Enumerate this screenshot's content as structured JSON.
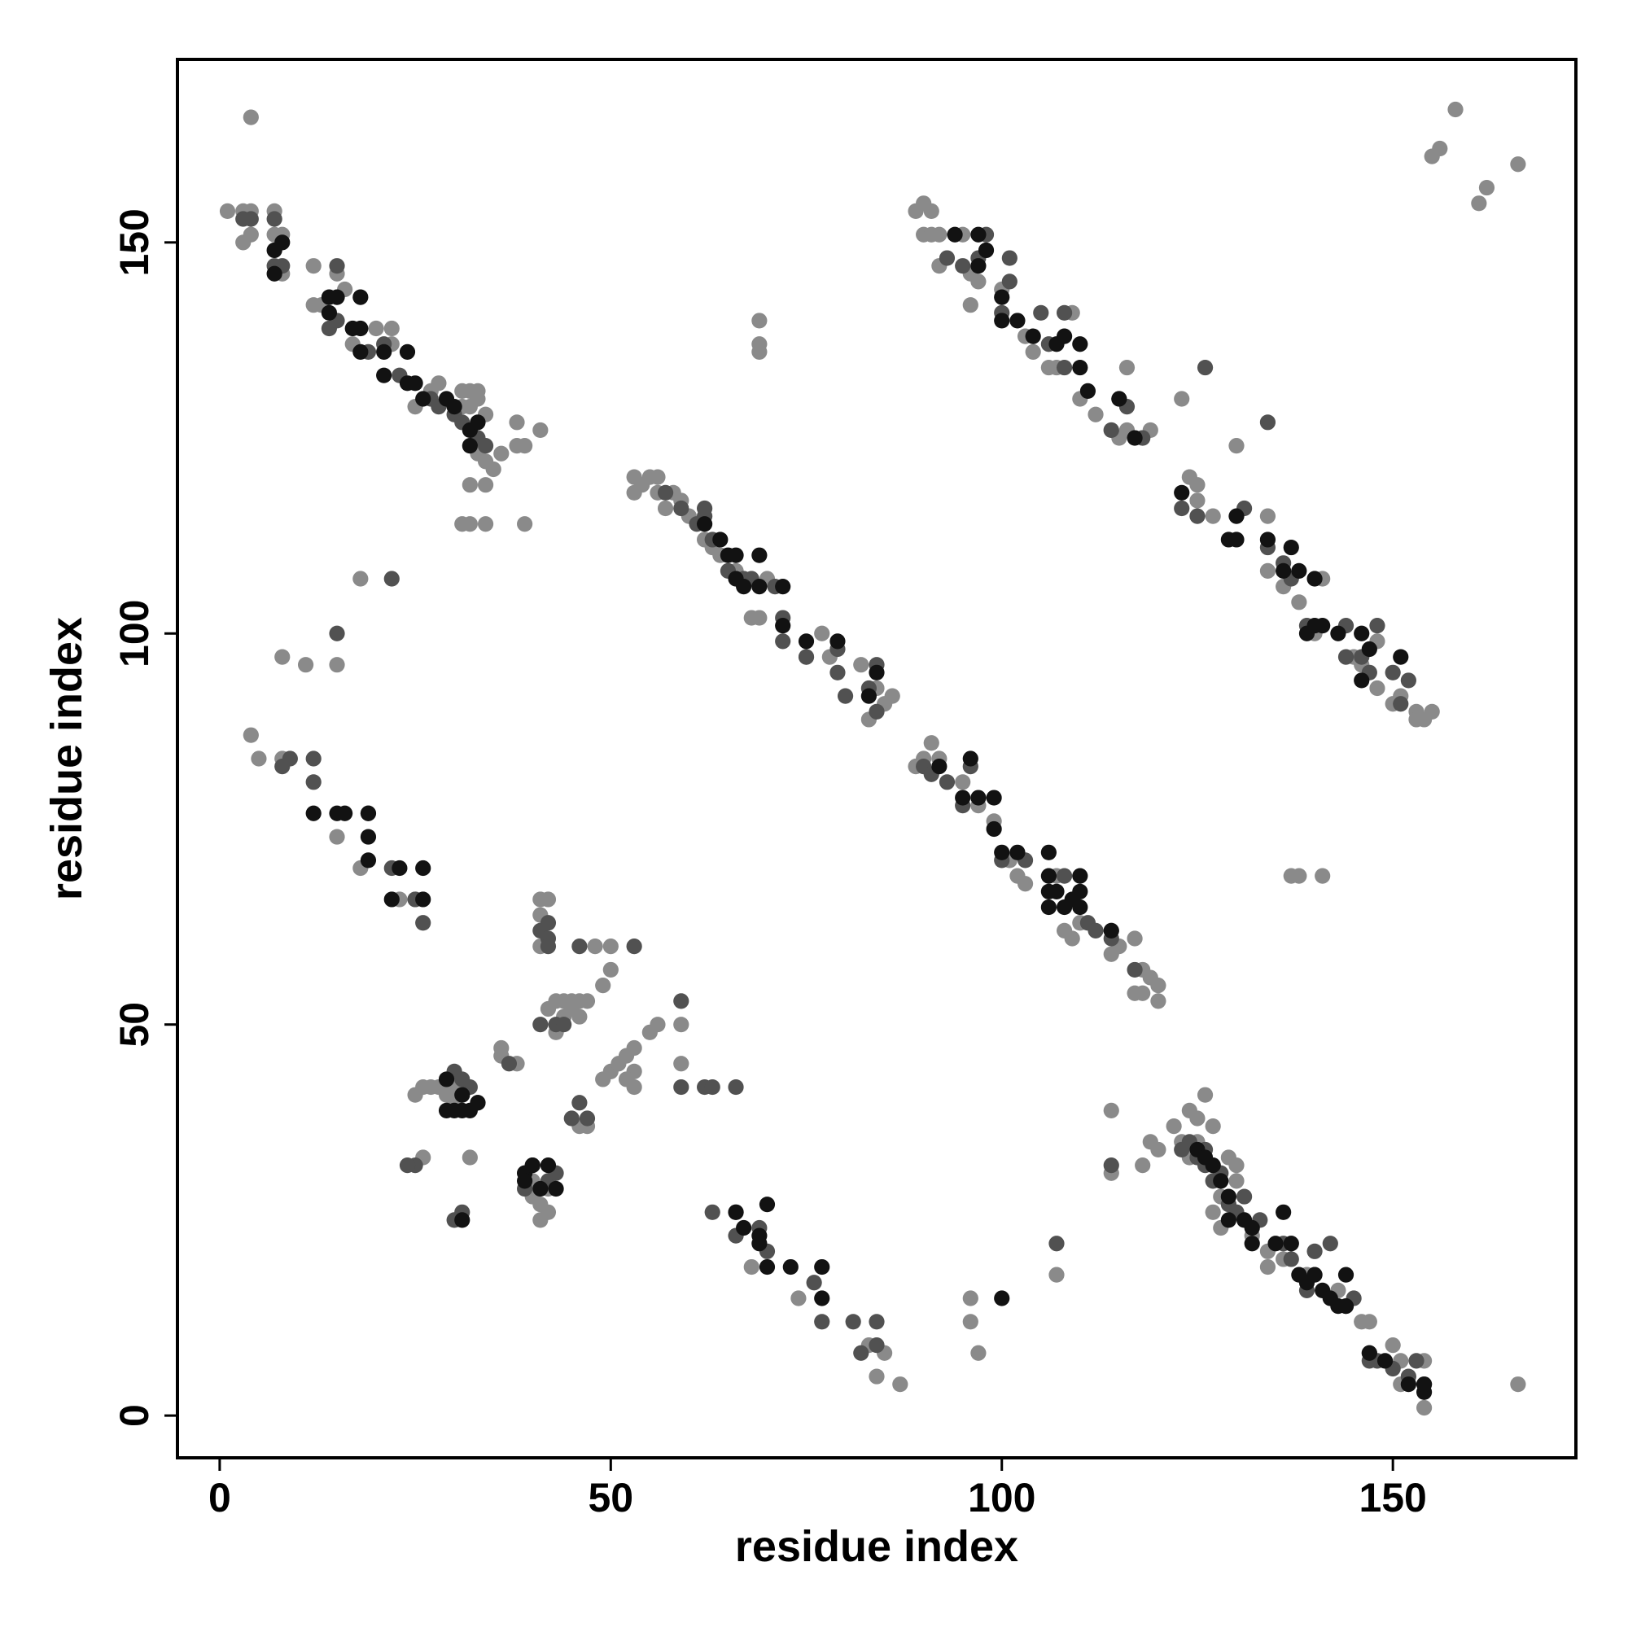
{
  "chart_data": {
    "type": "scatter",
    "x_label": "residue index",
    "y_label": "residue index",
    "xlim": [
      -5.4,
      173.4
    ],
    "ylim": [
      -5.4,
      173.4
    ],
    "xticks": [
      0,
      50,
      100,
      150
    ],
    "yticks": [
      0,
      50,
      100,
      150
    ],
    "grid": false,
    "series": [
      {
        "color": "#8a8a8a",
        "x": [
          1,
          3,
          4,
          3,
          4,
          7,
          8,
          12,
          8,
          13,
          4,
          7,
          17,
          20,
          22,
          22,
          25,
          27,
          28,
          31,
          32,
          33,
          31,
          32,
          33,
          34,
          33,
          34,
          35,
          36,
          38,
          39,
          41,
          38,
          39,
          34,
          34,
          31,
          32,
          32,
          15,
          16,
          12,
          53,
          53,
          54,
          55,
          56,
          56,
          57,
          58,
          59,
          60,
          62,
          63,
          64,
          66,
          70,
          68,
          69,
          75,
          77,
          78,
          82,
          83,
          84,
          86,
          85,
          89,
          90,
          91,
          92,
          95,
          97,
          99,
          101,
          102,
          103,
          107,
          108,
          109,
          110,
          114,
          115,
          117,
          118,
          119,
          120,
          120,
          118,
          117,
          114,
          89,
          90,
          91,
          90,
          91,
          92,
          92,
          95,
          96,
          96,
          97,
          100,
          103,
          104,
          106,
          107,
          109,
          110,
          112,
          114,
          115,
          116,
          116,
          118,
          119,
          123,
          125,
          125,
          130,
          127,
          134,
          134,
          136,
          141,
          138,
          140,
          145,
          146,
          148,
          148,
          150,
          151,
          153,
          153,
          154,
          155,
          166,
          158,
          161,
          162,
          155,
          156,
          124,
          4,
          5,
          8,
          8,
          11,
          15,
          15,
          18,
          23,
          25,
          18,
          137,
          138,
          141,
          69,
          69,
          69,
          25,
          26,
          27,
          28,
          29,
          30,
          31,
          30,
          26,
          36,
          36,
          38,
          41,
          42,
          41,
          41,
          42,
          43,
          44,
          45,
          46,
          47,
          46,
          44,
          45,
          49,
          50,
          49,
          50,
          51,
          52,
          53,
          53,
          53,
          52,
          55,
          56,
          59,
          43,
          46,
          47,
          41,
          42,
          41,
          40,
          42,
          40,
          50,
          48,
          39,
          32,
          59,
          68,
          74,
          83,
          84,
          85,
          87,
          96,
          96,
          97,
          107,
          114,
          114,
          119,
          122,
          123,
          124,
          125,
          124,
          126,
          127,
          127,
          129,
          130,
          130,
          128,
          127,
          128,
          130,
          132,
          134,
          134,
          136,
          137,
          139,
          140,
          143,
          144,
          146,
          147,
          147,
          150,
          151,
          151,
          154,
          154,
          166,
          120,
          125,
          118
        ],
        "values": [
          154,
          154,
          166,
          150,
          151,
          154,
          151,
          147,
          146,
          142,
          154,
          151,
          137,
          139,
          137,
          139,
          129,
          131,
          132,
          131,
          131,
          131,
          129,
          129,
          130,
          128,
          123,
          122,
          121,
          123,
          127,
          124,
          126,
          124,
          114,
          114,
          119,
          114,
          114,
          119,
          146,
          144,
          142,
          120,
          118,
          119,
          120,
          120,
          118,
          116,
          118,
          117,
          115,
          112,
          111,
          110,
          108,
          107,
          102,
          102,
          97,
          100,
          97,
          96,
          89,
          93,
          92,
          91,
          83,
          84,
          86,
          84,
          81,
          78,
          76,
          71,
          69,
          68,
          69,
          62,
          61,
          63,
          59,
          60,
          61,
          57,
          56,
          55,
          53,
          54,
          54,
          62,
          154,
          155,
          154,
          151,
          151,
          151,
          147,
          151,
          146,
          142,
          145,
          144,
          138,
          136,
          134,
          134,
          141,
          130,
          128,
          126,
          125,
          126,
          134,
          125,
          126,
          130,
          119,
          117,
          124,
          115,
          115,
          108,
          106,
          107,
          104,
          100,
          97,
          96,
          93,
          99,
          91,
          92,
          90,
          89,
          89,
          90,
          160,
          167,
          155,
          157,
          161,
          162,
          120,
          87,
          84,
          84,
          97,
          96,
          96,
          74,
          70,
          66,
          66,
          107,
          69,
          69,
          69,
          140,
          137,
          136,
          41,
          42,
          42,
          42,
          41,
          42,
          41,
          40,
          33,
          46,
          47,
          45,
          66,
          66,
          64,
          60,
          52,
          53,
          53,
          53,
          53,
          53,
          51,
          51,
          52,
          55,
          57,
          43,
          44,
          45,
          46,
          47,
          44,
          42,
          43,
          49,
          50,
          45,
          49,
          37,
          37,
          27,
          26,
          25,
          28,
          29,
          30,
          60,
          60,
          31,
          33,
          50,
          19,
          15,
          9,
          5,
          8,
          4,
          15,
          12,
          8,
          18,
          39,
          31,
          35,
          37,
          35,
          39,
          35,
          33,
          41,
          37,
          32,
          33,
          32,
          30,
          28,
          26,
          24,
          26,
          23,
          19,
          21,
          20,
          22,
          18,
          18,
          16,
          14,
          12,
          12,
          8,
          9,
          7,
          4,
          1,
          7,
          4,
          34,
          38,
          32
        ]
      },
      {
        "color": "#515151",
        "x": [
          3,
          4,
          7,
          7,
          8,
          15,
          14,
          15,
          19,
          21,
          23,
          27,
          28,
          30,
          31,
          33,
          34,
          57,
          59,
          61,
          62,
          62,
          63,
          65,
          67,
          68,
          71,
          72,
          72,
          75,
          79,
          79,
          80,
          83,
          84,
          84,
          90,
          91,
          93,
          96,
          95,
          100,
          103,
          108,
          111,
          112,
          117,
          114,
          93,
          95,
          97,
          98,
          100,
          101,
          101,
          105,
          108,
          106,
          108,
          114,
          115,
          116,
          118,
          123,
          125,
          126,
          134,
          131,
          134,
          136,
          137,
          139,
          144,
          144,
          146,
          148,
          147,
          150,
          152,
          151,
          8,
          9,
          12,
          12,
          15,
          19,
          22,
          25,
          26,
          22,
          25,
          24,
          30,
          32,
          33,
          37,
          41,
          42,
          42,
          42,
          41,
          43,
          44,
          46,
          53,
          46,
          47,
          39,
          40,
          42,
          43,
          30,
          31,
          59,
          59,
          62,
          63,
          66,
          31,
          45,
          63,
          66,
          66,
          69,
          70,
          76,
          77,
          81,
          82,
          84,
          84,
          107,
          114,
          123,
          124,
          125,
          126,
          127,
          128,
          129,
          130,
          131,
          133,
          136,
          137,
          140,
          142,
          145,
          147,
          148,
          150,
          152,
          153,
          154,
          126,
          139
        ],
        "values": [
          153,
          153,
          153,
          147,
          147,
          147,
          139,
          140,
          136,
          137,
          133,
          130,
          129,
          128,
          127,
          125,
          124,
          118,
          116,
          114,
          115,
          116,
          112,
          108,
          107,
          107,
          106,
          102,
          99,
          97,
          98,
          95,
          92,
          93,
          96,
          90,
          83,
          82,
          81,
          83,
          78,
          71,
          71,
          69,
          63,
          62,
          57,
          61,
          148,
          147,
          148,
          151,
          141,
          145,
          148,
          141,
          141,
          137,
          134,
          126,
          130,
          129,
          125,
          116,
          115,
          134,
          127,
          116,
          111,
          109,
          107,
          101,
          101,
          97,
          97,
          101,
          95,
          95,
          94,
          91,
          83,
          84,
          81,
          84,
          100,
          77,
          70,
          66,
          63,
          107,
          32,
          32,
          44,
          42,
          40,
          45,
          62,
          63,
          61,
          60,
          50,
          50,
          50,
          60,
          60,
          40,
          38,
          29,
          32,
          30,
          31,
          25,
          26,
          42,
          53,
          42,
          42,
          42,
          43,
          38,
          26,
          26,
          23,
          24,
          21,
          17,
          12,
          12,
          8,
          12,
          9,
          22,
          32,
          34,
          35,
          33,
          32,
          30,
          31,
          27,
          26,
          28,
          25,
          22,
          20,
          21,
          22,
          15,
          7,
          7,
          6,
          5,
          7,
          4,
          34,
          16
        ]
      },
      {
        "color": "#121212",
        "x": [
          7,
          8,
          7,
          14,
          15,
          14,
          18,
          17,
          18,
          18,
          21,
          21,
          24,
          24,
          25,
          26,
          29,
          30,
          32,
          33,
          32,
          62,
          64,
          65,
          66,
          66,
          67,
          69,
          69,
          72,
          72,
          75,
          79,
          84,
          83,
          92,
          96,
          95,
          97,
          99,
          99,
          100,
          102,
          106,
          106,
          106,
          106,
          107,
          108,
          110,
          110,
          110,
          114,
          109,
          94,
          97,
          97,
          98,
          100,
          100,
          102,
          104,
          107,
          108,
          110,
          110,
          111,
          115,
          117,
          123,
          129,
          130,
          130,
          134,
          137,
          136,
          138,
          140,
          139,
          140,
          141,
          143,
          146,
          147,
          146,
          151,
          12,
          15,
          16,
          19,
          19,
          19,
          23,
          26,
          26,
          22,
          29,
          30,
          31,
          32,
          33,
          31,
          29,
          39,
          40,
          39,
          42,
          43,
          41,
          31,
          66,
          67,
          69,
          70,
          70,
          73,
          77,
          77,
          69,
          100,
          125,
          126,
          127,
          128,
          129,
          129,
          131,
          132,
          132,
          135,
          137,
          136,
          138,
          139,
          140,
          141,
          142,
          143,
          144,
          144,
          147,
          149,
          152,
          154,
          154
        ],
        "values": [
          149,
          150,
          146,
          143,
          143,
          141,
          143,
          139,
          139,
          136,
          136,
          133,
          136,
          132,
          132,
          130,
          130,
          129,
          126,
          127,
          124,
          114,
          112,
          110,
          110,
          107,
          106,
          106,
          110,
          106,
          101,
          99,
          99,
          95,
          92,
          83,
          84,
          79,
          79,
          79,
          75,
          72,
          72,
          72,
          69,
          67,
          65,
          67,
          65,
          65,
          67,
          69,
          62,
          66,
          151,
          151,
          147,
          149,
          143,
          140,
          140,
          138,
          137,
          138,
          137,
          134,
          131,
          130,
          125,
          118,
          112,
          115,
          112,
          112,
          111,
          108,
          108,
          107,
          100,
          101,
          101,
          100,
          100,
          98,
          94,
          97,
          77,
          77,
          77,
          74,
          77,
          71,
          70,
          70,
          66,
          66,
          39,
          39,
          39,
          39,
          40,
          41,
          43,
          31,
          32,
          30,
          32,
          29,
          29,
          25,
          26,
          24,
          23,
          27,
          19,
          19,
          19,
          15,
          22,
          15,
          34,
          33,
          32,
          30,
          28,
          25,
          25,
          24,
          22,
          22,
          22,
          26,
          18,
          17,
          18,
          16,
          15,
          14,
          14,
          18,
          8,
          7,
          4,
          3,
          4
        ]
      }
    ]
  }
}
